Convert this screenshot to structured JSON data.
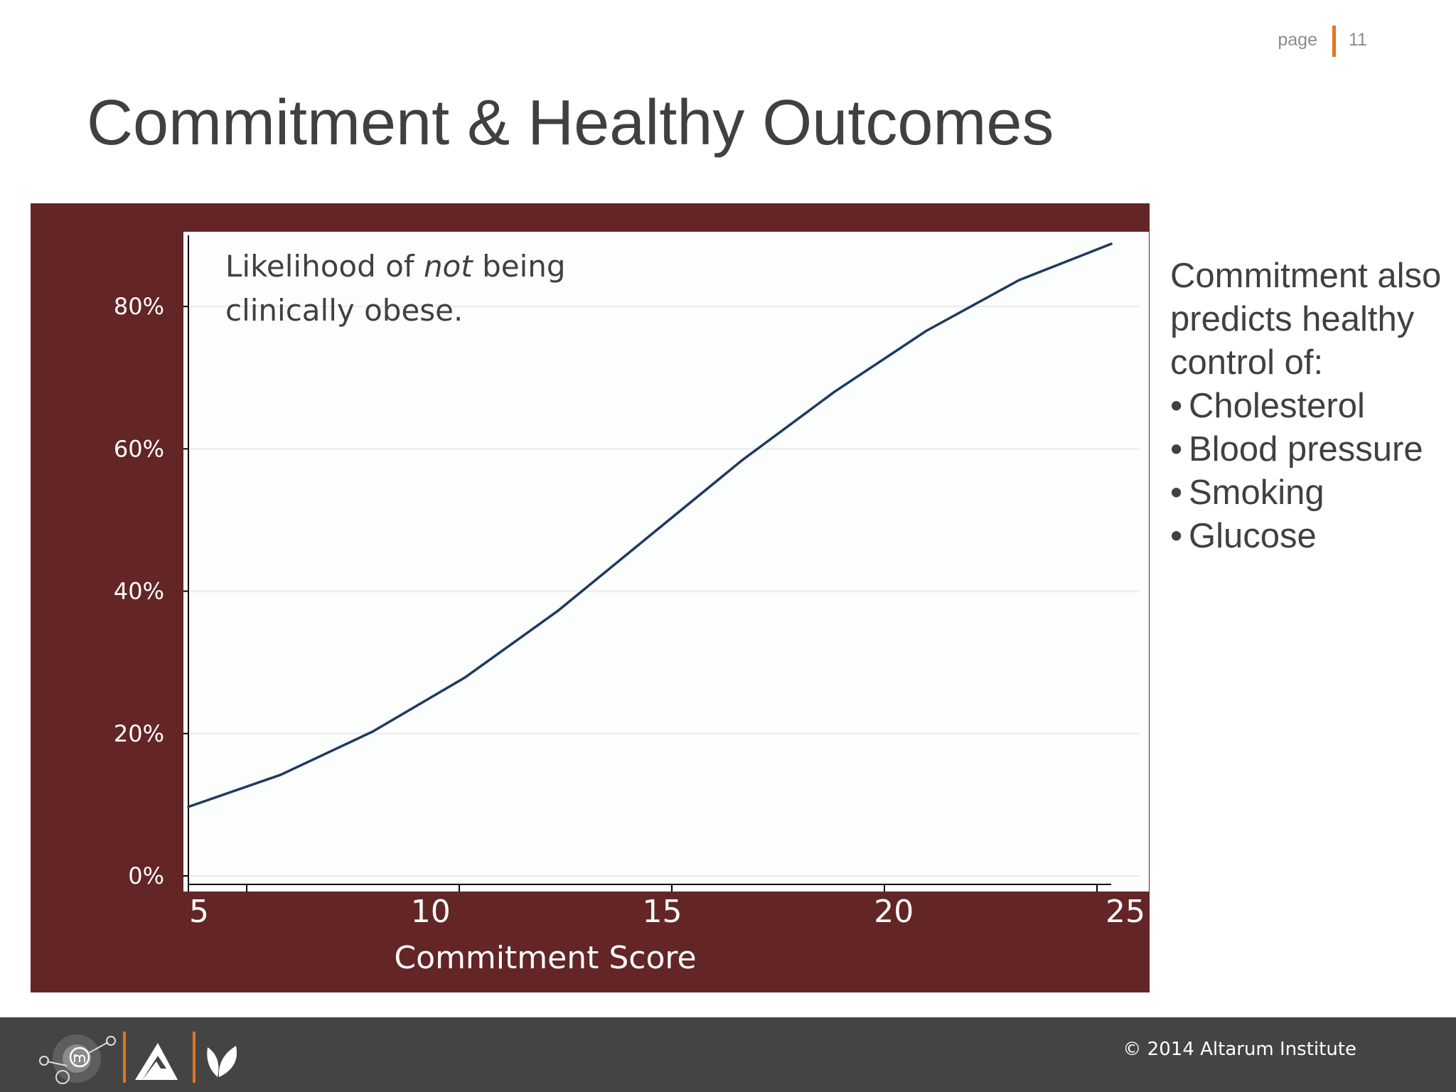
{
  "header": {
    "page_label": "page",
    "page_number": "11"
  },
  "title": "Commitment & Healthy Outcomes",
  "chart_data": {
    "type": "line",
    "annotation": {
      "line1_prefix": "Likelihood of ",
      "line1_emphasis": "not",
      "line1_suffix": " being",
      "line2": "clinically obese."
    },
    "xlabel": "Commitment Score",
    "ylabel": "",
    "xlim": [
      5,
      25
    ],
    "ylim": [
      0,
      90
    ],
    "x_tick_labels": [
      "5",
      "10",
      "15",
      "20",
      "25"
    ],
    "y_ticks": [
      0,
      20,
      40,
      60,
      80
    ],
    "y_tick_labels": [
      "0%",
      "20%",
      "40%",
      "60%",
      "80%"
    ],
    "grid": true,
    "series": [
      {
        "x": [
          5,
          7,
          9,
          11,
          13,
          15,
          17,
          19,
          21,
          23,
          25
        ],
        "values": [
          9.7,
          14.2,
          20.3,
          27.9,
          37.2,
          47.8,
          58.4,
          68.0,
          76.6,
          83.7,
          88.8
        ]
      }
    ]
  },
  "sidebar": {
    "intro": "Commitment also predicts healthy control of:",
    "items": [
      "Cholesterol",
      "Blood pressure",
      "Smoking",
      "Glucose"
    ]
  },
  "footer": {
    "copyright": "© 2014 Altarum Institute"
  },
  "colors": {
    "panel": "#632526",
    "line": "#1f3a5f",
    "accent": "#e8731f",
    "footer": "#444444"
  }
}
